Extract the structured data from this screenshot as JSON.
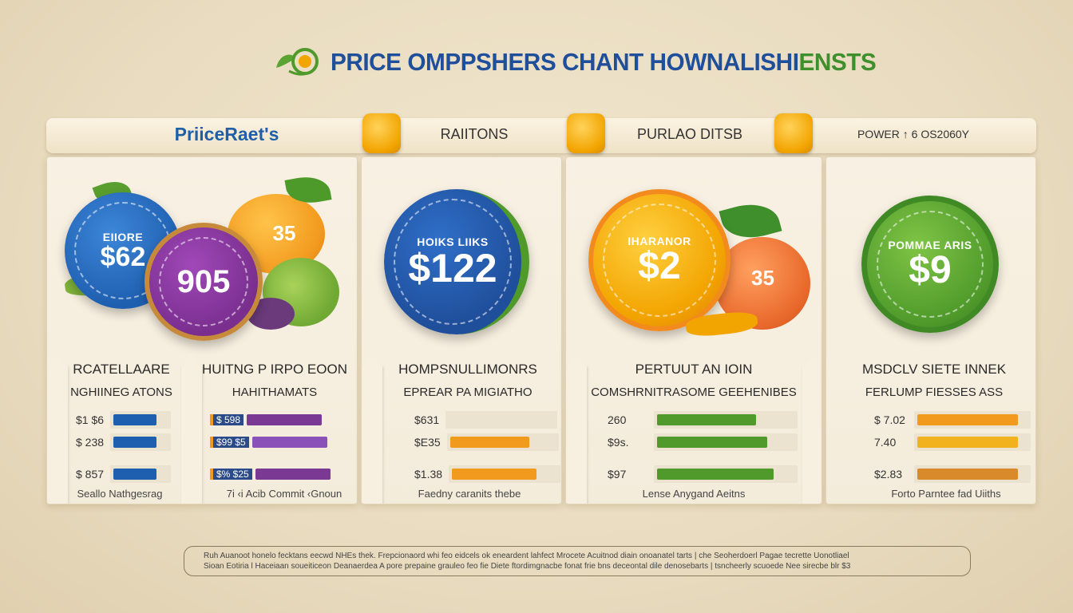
{
  "title": {
    "main": "PRICE OMPPSHERS CHANT HOWNALISHI",
    "accent": "ENSTS"
  },
  "header": {
    "col1": "PriiceRaet's",
    "col2": "RAIITONS",
    "col3": "PURLAO DITSB",
    "col4": "POWER ↑ 6 OS2060Y"
  },
  "colors": {
    "blue": "#1f5fb0",
    "purple": "#7a3a93",
    "orange": "#f29a1e",
    "green": "#4f9a2b",
    "gold": "#f2a400"
  },
  "panels": [
    {
      "circles": [
        {
          "small": "EIIORE",
          "big": "$62",
          "color": "#1f5fb0"
        },
        {
          "small": "",
          "big": "905",
          "color": "#7a2f8f"
        },
        {
          "small": "",
          "big": "35",
          "color": "#f29a1e"
        }
      ],
      "heads": [
        {
          "h1": "RCATELLAARE",
          "h2": "NGHIINEG ATONS"
        },
        {
          "h1": "HUITNG P IRPO EOON",
          "h2": "HAHITHAMATS"
        }
      ],
      "bars_left": [
        {
          "label": "$1 $6",
          "value": 0.75,
          "color": "#1f5fb0"
        },
        {
          "label": "$ 238",
          "value": 0.75,
          "color": "#1f5fb0"
        },
        {
          "label": "$ 857",
          "value": 0.75,
          "color": "#1f5fb0"
        }
      ],
      "bars_right": [
        {
          "label": "$ 598",
          "value": 0.85,
          "color": "#7a3a93",
          "prefix_color": "#f29a1e"
        },
        {
          "label": "$99 $5",
          "value": 0.85,
          "color": "#8a52b8",
          "prefix_color": "#f29a1e"
        },
        {
          "label": "$% $25",
          "value": 0.85,
          "color": "#7a3a93",
          "prefix_color": "#f29a1e"
        }
      ],
      "foot_left": "Seallo Nathgesrag",
      "foot_right": "7i ‹i Acib Commit ‹Gnoun"
    },
    {
      "circle": {
        "small": "HOIKS LIIKS",
        "big": "$122",
        "color": "#1f4e9a"
      },
      "head": {
        "h1": "HOMPSNULLIMONRS",
        "h2": "EPREAR PA MIGIATHO"
      },
      "bars": [
        {
          "label": "$631",
          "value": 0.0,
          "color": "#f29a1e"
        },
        {
          "label": "$E35",
          "value": 0.75,
          "color": "#f29a1e"
        },
        {
          "label": "$1.38",
          "value": 0.8,
          "color": "#f29a1e"
        }
      ],
      "foot": "Faedny caranits thebe"
    },
    {
      "circle": {
        "small": "IHARANOR",
        "big": "$2",
        "color": "#f2a400"
      },
      "small_badge": "35",
      "head": {
        "h1": "PERTUUT AN IOIN",
        "h2": "COMSHRNITRASOME GEEHENIBES"
      },
      "bars": [
        {
          "label": "260",
          "value": 0.72,
          "color": "#4f9a2b"
        },
        {
          "label": "$9s.",
          "value": 0.8,
          "color": "#4f9a2b"
        },
        {
          "label": "$97",
          "value": 0.85,
          "color": "#4f9a2b"
        }
      ],
      "foot": "Lense Anygand Aeitns"
    },
    {
      "circle": {
        "small": "POMMAE ARIS",
        "big": "$9",
        "color": "#4f9a2b"
      },
      "head": {
        "h1": "MSDCLV SIETE INNEK",
        "h2": "FERLUMP FIESSES ASS"
      },
      "bars": [
        {
          "label": "$ 7.02",
          "value": 0.9,
          "color": "#f29a1e"
        },
        {
          "label": "7.40",
          "value": 0.9,
          "color": "#f2b21e"
        },
        {
          "label": "$2.83",
          "value": 0.9,
          "color": "#d98a2a"
        }
      ],
      "foot": "Forto Parntee fad Uiiths"
    }
  ],
  "note": {
    "line1": "Ruh Auanoot honelo fecktans eecwd NHEs thek. Frepcionaord whi feo eidcels ok eneardent lahfect Mrocete Acuitnod diain onoanatel tarts  |  che Seoherdoerl Pagae tecrette Uonotliael",
    "line2": "Sioan Eotiria l Haceiaan soueiticeon Deanaerdea A pore prepaine grauleo feo fie Diete ftordimgnacbe fonat frie bns deceontal dile denosebarts  |  tsncheerly scuoede Nee sirecbe blr $3"
  }
}
